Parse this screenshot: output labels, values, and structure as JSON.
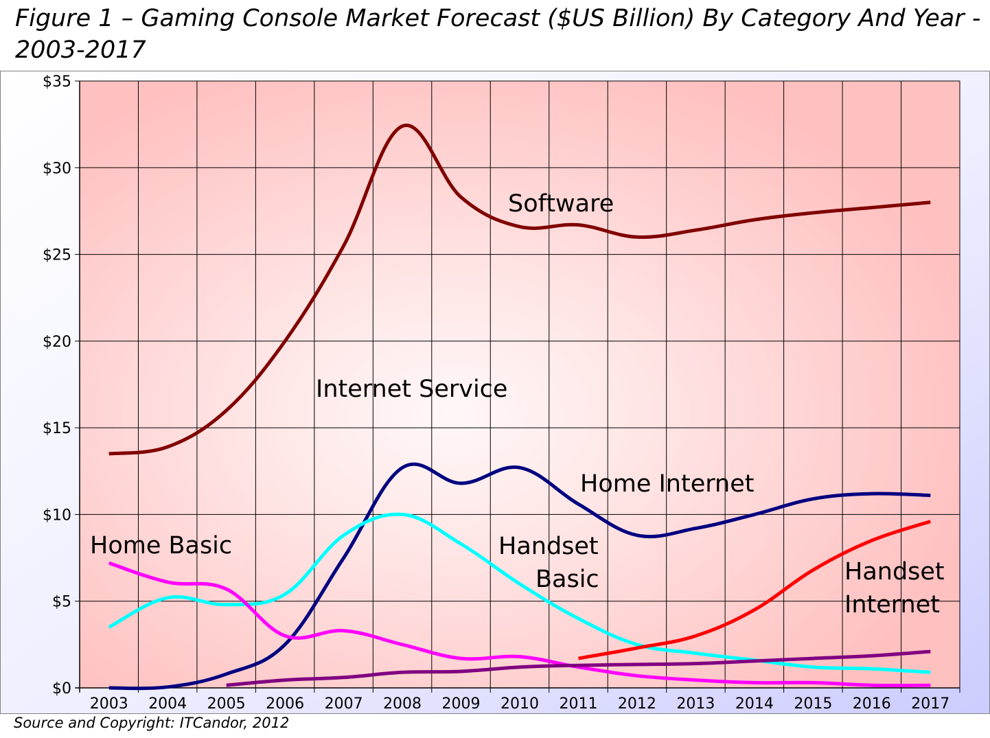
{
  "title": "Figure 1 – Gaming Console Market Forecast ($US Billion) By Category And Year - 2003-2017",
  "source": "Source and Copyright: ITCandor, 2012",
  "chart_data": {
    "type": "line",
    "x": [
      "2003",
      "2004",
      "2005",
      "2006",
      "2007",
      "2008",
      "2009",
      "2010",
      "2011",
      "2012",
      "2013",
      "2014",
      "2015",
      "2016",
      "2017"
    ],
    "ylim": [
      0,
      35
    ],
    "yticks": [
      0,
      5,
      10,
      15,
      20,
      25,
      30,
      35
    ],
    "ytick_labels": [
      "$0",
      "$5",
      "$10",
      "$15",
      "$20",
      "$25",
      "$30",
      "$35"
    ],
    "grid": true,
    "colors": {
      "plot_background": "#ffc0c0",
      "plot_highlight": "#fff8f8",
      "outer_background": "#ccccff"
    },
    "series": [
      {
        "name": "Software",
        "color": "#800000",
        "values": [
          13.5,
          13.9,
          16.0,
          20.0,
          25.5,
          32.4,
          28.3,
          26.6,
          26.7,
          26.0,
          26.4,
          27.0,
          27.4,
          27.7,
          28.0
        ]
      },
      {
        "name": "Home Internet",
        "color": "#000080",
        "values": [
          0.0,
          0.05,
          0.8,
          2.5,
          7.5,
          12.7,
          11.8,
          12.7,
          10.6,
          8.8,
          9.2,
          10.0,
          10.9,
          11.2,
          11.1
        ]
      },
      {
        "name": "Handset Basic",
        "color": "#00ffff",
        "values": [
          3.5,
          5.2,
          4.8,
          5.4,
          8.8,
          10.0,
          8.3,
          6.0,
          4.0,
          2.5,
          2.0,
          1.6,
          1.2,
          1.1,
          0.9
        ]
      },
      {
        "name": "Home Basic",
        "color": "#ff00ff",
        "values": [
          7.2,
          6.1,
          5.7,
          3.0,
          3.3,
          2.5,
          1.7,
          1.8,
          1.2,
          0.7,
          0.45,
          0.3,
          0.3,
          0.15,
          0.15
        ]
      },
      {
        "name": "Handset Internet",
        "color": "#ff0000",
        "values": [
          null,
          null,
          null,
          null,
          null,
          null,
          null,
          null,
          1.7,
          2.3,
          3.0,
          4.5,
          6.8,
          8.5,
          9.6
        ]
      },
      {
        "name": "Internet Service",
        "color": "#800080",
        "values": [
          null,
          null,
          0.15,
          0.45,
          0.6,
          0.9,
          0.95,
          1.2,
          1.3,
          1.35,
          1.4,
          1.55,
          1.7,
          1.85,
          2.1
        ]
      }
    ],
    "annotations": [
      {
        "text": "Software",
        "series": "Software"
      },
      {
        "text": "Internet Service",
        "series": "Internet Service"
      },
      {
        "text": "Home Internet",
        "series": "Home Internet"
      },
      {
        "text": "Home Basic",
        "series": "Home Basic"
      },
      {
        "text": "Handset",
        "series": "Handset Basic"
      },
      {
        "text": "Basic",
        "series": "Handset Basic"
      },
      {
        "text": "Handset",
        "series": "Handset Internet"
      },
      {
        "text": "Internet",
        "series": "Handset Internet"
      }
    ]
  }
}
